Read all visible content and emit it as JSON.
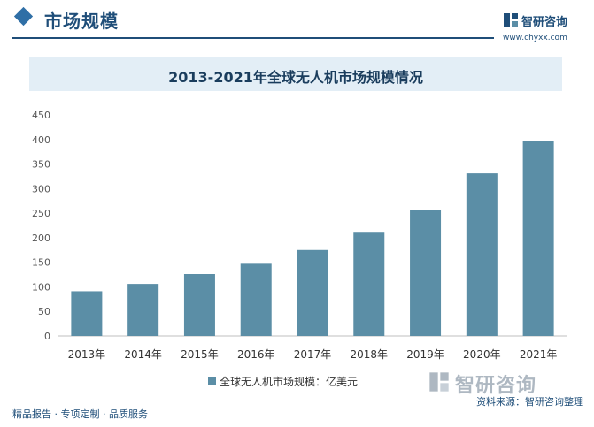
{
  "header": {
    "section_title": "市场规模",
    "brand_name": "智研咨询",
    "brand_url": "www.chyxx.com"
  },
  "chart_data": {
    "type": "bar",
    "title": "2013-2021年全球无人机市场规模情况",
    "categories": [
      "2013年",
      "2014年",
      "2015年",
      "2016年",
      "2017年",
      "2018年",
      "2019年",
      "2020年",
      "2021年"
    ],
    "series": [
      {
        "name": "全球无人机市场规模：亿美元",
        "values": [
          91,
          106,
          126,
          147,
          175,
          212,
          257,
          331,
          396
        ]
      }
    ],
    "ylim": [
      0,
      450
    ],
    "yticks": [
      0,
      50,
      100,
      150,
      200,
      250,
      300,
      350,
      400,
      450
    ],
    "ytick_labels": [
      "0",
      "50",
      "100",
      "150",
      "200",
      "250",
      "300",
      "350",
      "400",
      "450"
    ],
    "bar_color": "#5b8ea6",
    "legend_position": "bottom",
    "grid": false
  },
  "footer": {
    "left_text": "精品报告 · 专项定制 · 品质服务",
    "source_text": "资料来源：智研咨询整理",
    "watermark_text": "智研咨询"
  }
}
